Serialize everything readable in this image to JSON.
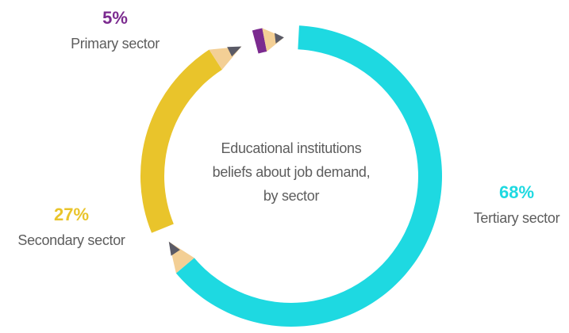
{
  "chart_data": {
    "type": "pie",
    "title": "Educational institutions beliefs about job demand, by sector",
    "categories": [
      "Tertiary sector",
      "Secondary sector",
      "Primary sector"
    ],
    "values": [
      68,
      27,
      5
    ],
    "value_labels": [
      "68%",
      "27%",
      "5%"
    ],
    "colors": [
      "#1ed9e1",
      "#e9c42b",
      "#7b2a8f"
    ]
  }
}
